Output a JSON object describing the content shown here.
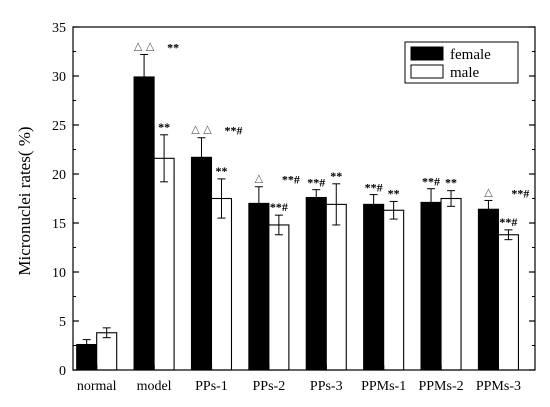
{
  "chart_data": {
    "type": "bar",
    "title": "",
    "xlabel": "",
    "ylabel": "Micronuclei rates( %)",
    "ylim": [
      0,
      35
    ],
    "yticks": [
      "0",
      "5",
      "10",
      "15",
      "20",
      "25",
      "30",
      "35"
    ],
    "categories": [
      "normal",
      "model",
      "PPs-1",
      "PPs-2",
      "PPs-3",
      "PPMs-1",
      "PPMs-2",
      "PPMs-3"
    ],
    "legend_position": "top-right",
    "grid": false,
    "series": [
      {
        "name": "female",
        "fill": "#000000",
        "values": [
          2.6,
          29.9,
          21.7,
          17.0,
          17.6,
          16.9,
          17.1,
          16.4
        ],
        "errors": [
          0.5,
          2.3,
          2.0,
          1.7,
          0.8,
          1.0,
          1.4,
          0.9
        ],
        "annotations": [
          {
            "marks": "",
            "sig": ""
          },
          {
            "marks": "△ △",
            "sig": "**"
          },
          {
            "marks": "△ △",
            "sig": "**#"
          },
          {
            "marks": "△",
            "sig": "**#"
          },
          {
            "marks": "",
            "sig": "**#"
          },
          {
            "marks": "",
            "sig": "**#"
          },
          {
            "marks": "",
            "sig": "**#"
          },
          {
            "marks": "△",
            "sig": "**#"
          }
        ]
      },
      {
        "name": "male",
        "fill": "#ffffff",
        "values": [
          3.8,
          21.6,
          17.5,
          14.8,
          16.9,
          16.3,
          17.5,
          13.8
        ],
        "errors": [
          0.5,
          2.4,
          2.0,
          1.0,
          2.1,
          0.9,
          0.8,
          0.5
        ],
        "annotations": [
          "",
          "**",
          "**",
          "**#",
          "**",
          "**",
          "**",
          "**#"
        ]
      }
    ]
  }
}
